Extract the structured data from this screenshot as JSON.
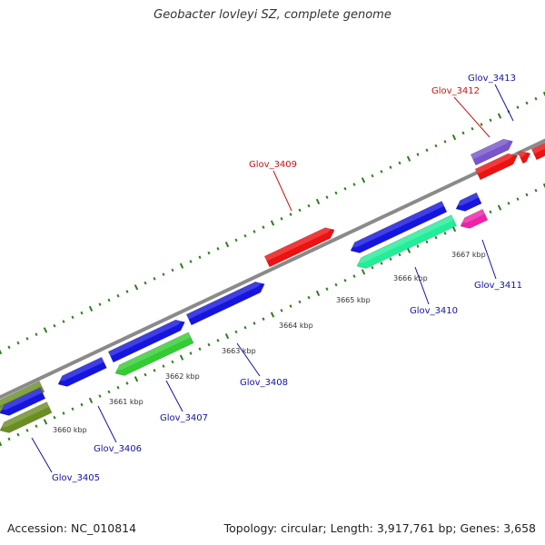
{
  "title": "Geobacter lovleyi SZ, complete genome",
  "footer": {
    "accession": "Accession: NC_010814",
    "summary": "Topology: circular; Length: 3,917,761 bp; Genes: 3,658"
  },
  "colors": {
    "backbone": "#8a8a8a",
    "dots": "#2e7d1e",
    "red_label": "#cc1111",
    "blue_label": "#1111aa"
  },
  "ticks": [
    "3660 kbp",
    "3661 kbp",
    "3662 kbp",
    "3663 kbp",
    "3664 kbp",
    "3665 kbp",
    "3666 kbp",
    "3667 kbp"
  ],
  "genes": [
    {
      "id": "Glov_3405",
      "label": "Glov_3405",
      "color": "#6b8e23",
      "strand": "reverse"
    },
    {
      "id": "Glov_3406",
      "label": "Glov_3406",
      "color": "#1515e0",
      "strand": "reverse"
    },
    {
      "id": "Glov_3407",
      "label": "Glov_3407",
      "color": "#33cc33",
      "strand": "reverse"
    },
    {
      "id": "Glov_3408",
      "label": "Glov_3408",
      "color": "#1515e0",
      "strand": "forward"
    },
    {
      "id": "Glov_3409",
      "label": "Glov_3409",
      "color": "#ee1111",
      "strand": "forward"
    },
    {
      "id": "Glov_3410",
      "label": "Glov_3410",
      "color": "#22ee99",
      "strand": "reverse"
    },
    {
      "id": "Glov_3411",
      "label": "Glov_3411",
      "color": "#ee22aa",
      "strand": "reverse"
    },
    {
      "id": "Glov_3412",
      "label": "Glov_3412",
      "color": "#ee1111",
      "strand": "forward"
    },
    {
      "id": "Glov_3413",
      "label": "Glov_3413",
      "color": "#7755cc",
      "strand": "forward"
    }
  ]
}
